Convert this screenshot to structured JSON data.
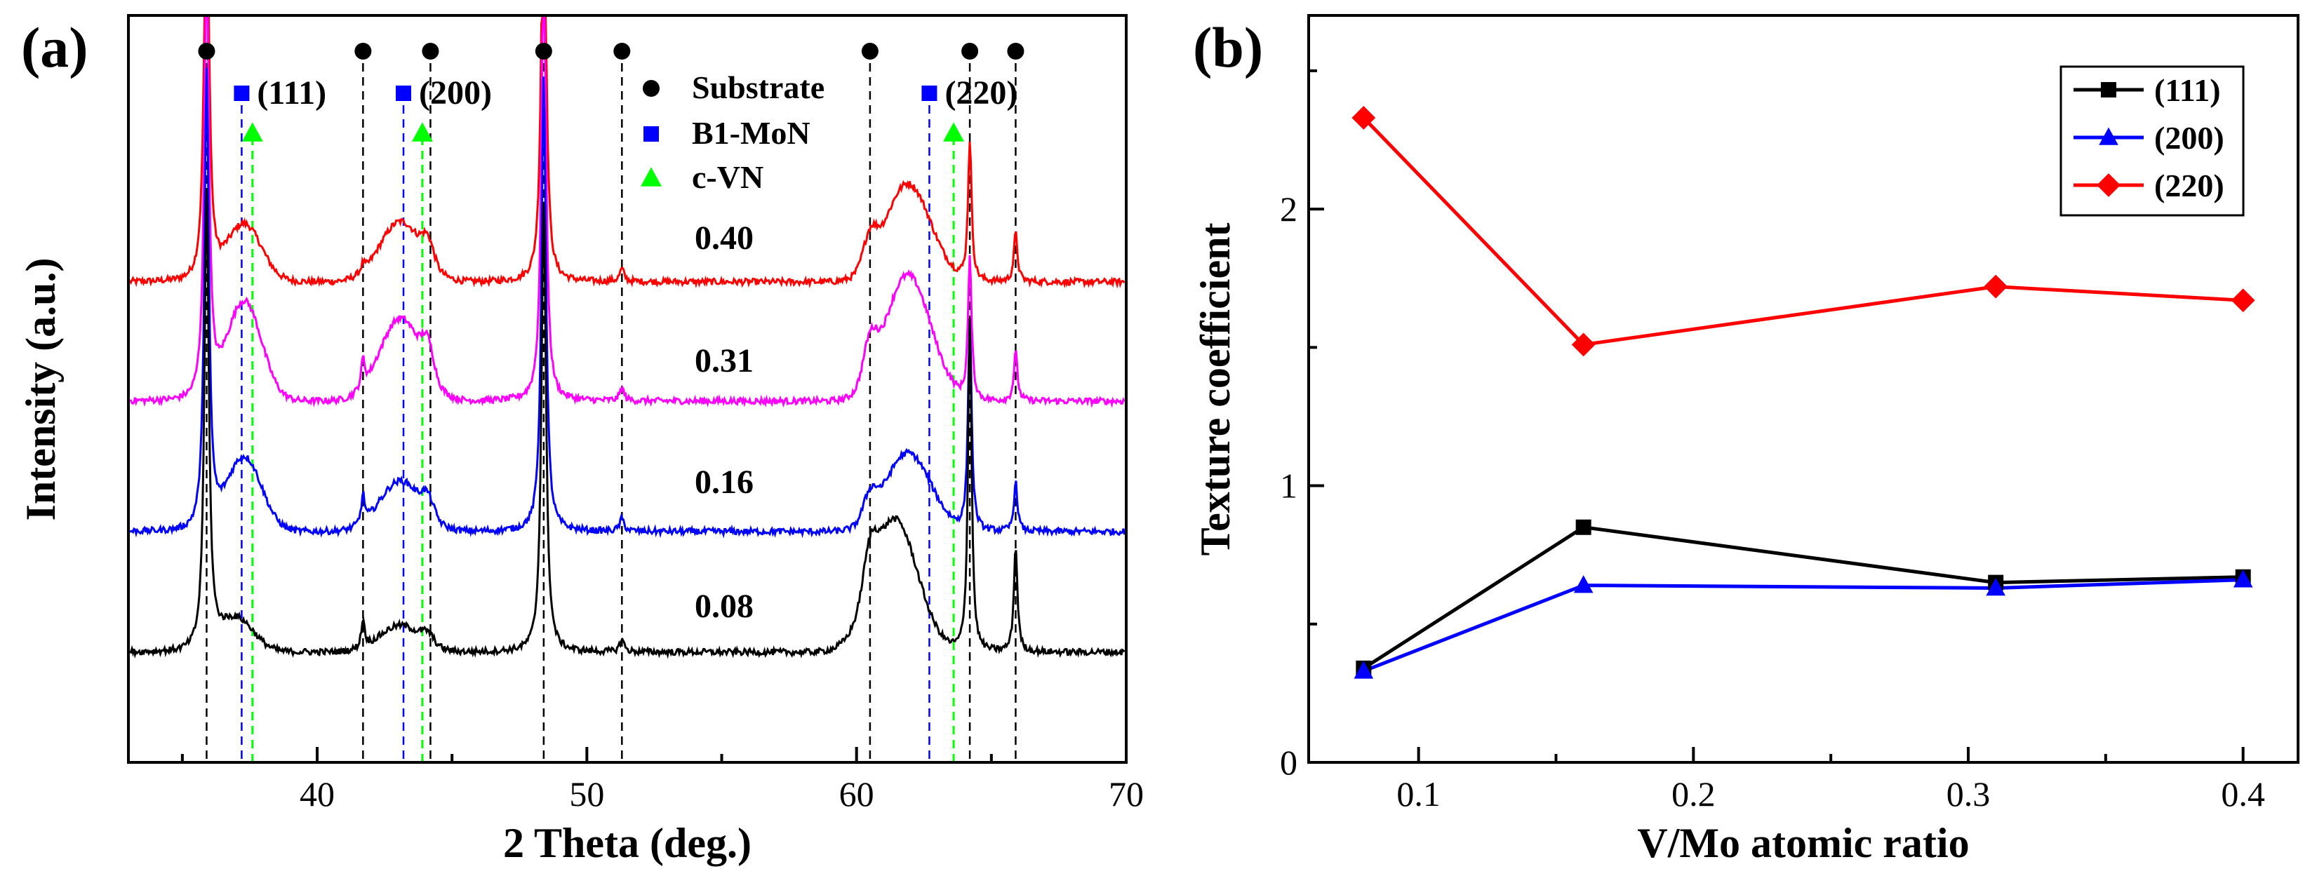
{
  "chart_data": [
    {
      "type": "line",
      "panel_label": "(a)",
      "xlabel": "2 Theta (deg.)",
      "ylabel": "Intensity (a.u.)",
      "xlim": [
        33,
        70
      ],
      "x_ticks": [
        40,
        50,
        60,
        70
      ],
      "legend": [
        {
          "label": "Substrate",
          "marker": "circle",
          "color": "#000000"
        },
        {
          "label": "B1-MoN",
          "marker": "square",
          "color": "#0000ff"
        },
        {
          "label": "c-VN",
          "marker": "triangle",
          "color": "#00ff00"
        }
      ],
      "reference_lines": {
        "substrate": [
          35.9,
          41.7,
          44.2,
          48.4,
          51.3,
          60.5,
          64.2,
          65.9
        ],
        "b1_mon": [
          37.2,
          43.2,
          62.7
        ],
        "c_vn": [
          37.6,
          43.9,
          63.6
        ]
      },
      "peak_labels": [
        {
          "text": "(111)",
          "x": 37.2
        },
        {
          "text": "(200)",
          "x": 43.2
        },
        {
          "text": "(220)",
          "x": 62.7
        }
      ],
      "series": [
        {
          "name": "0.40",
          "color": "#ff0000",
          "offset": 3
        },
        {
          "name": "0.31",
          "color": "#ff00ff",
          "offset": 2
        },
        {
          "name": "0.16",
          "color": "#0000ff",
          "offset": 1
        },
        {
          "name": "0.08",
          "color": "#000000",
          "offset": 0
        }
      ]
    },
    {
      "type": "line",
      "panel_label": "(b)",
      "xlabel": "V/Mo atomic ratio",
      "ylabel": "Texture coefficient",
      "xlim": [
        0.06,
        0.42
      ],
      "ylim": [
        0,
        2.7
      ],
      "x_ticks": [
        0.1,
        0.2,
        0.3,
        0.4
      ],
      "y_ticks": [
        0,
        1,
        2
      ],
      "x": [
        0.08,
        0.16,
        0.31,
        0.4
      ],
      "legend_position": "top-right",
      "series": [
        {
          "name": "(111)",
          "color": "#000000",
          "marker": "square",
          "values": [
            0.34,
            0.85,
            0.65,
            0.67
          ]
        },
        {
          "name": "(200)",
          "color": "#0000ff",
          "marker": "triangle",
          "values": [
            0.33,
            0.64,
            0.63,
            0.66
          ]
        },
        {
          "name": "(220)",
          "color": "#ff0000",
          "marker": "diamond",
          "values": [
            2.33,
            1.51,
            1.72,
            1.67
          ]
        }
      ]
    }
  ]
}
